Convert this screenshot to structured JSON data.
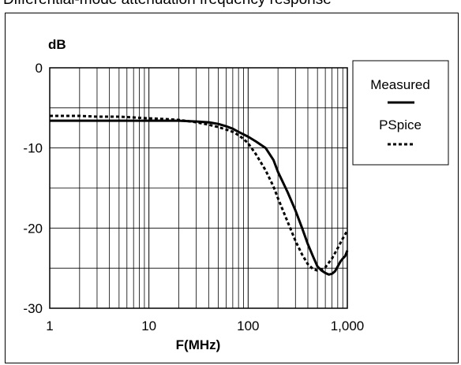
{
  "caption": "Differential-mode attenuation frequency response",
  "chart_data": {
    "type": "line",
    "xlabel": "F(MHz)",
    "ylabel": "dB",
    "x_scale": "log",
    "xlim": [
      1,
      1000
    ],
    "ylim": [
      -30,
      0
    ],
    "grid": true,
    "legend_placement": "right",
    "x_ticks": [
      {
        "value": 1,
        "label": "1"
      },
      {
        "value": 10,
        "label": "10"
      },
      {
        "value": 100,
        "label": "100"
      },
      {
        "value": 1000,
        "label": "1,000"
      }
    ],
    "y_ticks": [
      {
        "value": 0,
        "label": "0"
      },
      {
        "value": -10,
        "label": "-10"
      },
      {
        "value": -20,
        "label": "-20"
      },
      {
        "value": -30,
        "label": "-30"
      }
    ],
    "series": [
      {
        "name": "Measured",
        "color": "#000000",
        "style": "solid",
        "x": [
          1,
          2,
          3,
          5,
          7,
          10,
          15,
          20,
          30,
          40,
          50,
          60,
          70,
          80,
          100,
          120,
          150,
          180,
          200,
          250,
          300,
          350,
          400,
          450,
          500,
          550,
          600,
          650,
          700,
          750,
          800,
          850,
          900,
          950,
          1000
        ],
        "y": [
          -6.6,
          -6.6,
          -6.6,
          -6.6,
          -6.6,
          -6.6,
          -6.6,
          -6.6,
          -6.7,
          -6.8,
          -7.0,
          -7.3,
          -7.6,
          -8.0,
          -8.6,
          -9.2,
          -10.0,
          -11.5,
          -13.0,
          -15.5,
          -17.8,
          -20.0,
          -22.0,
          -23.5,
          -24.8,
          -25.3,
          -25.6,
          -25.8,
          -25.7,
          -25.4,
          -24.8,
          -24.2,
          -23.8,
          -23.5,
          -22.8
        ]
      },
      {
        "name": "PSpice",
        "color": "#000000",
        "style": "dotted",
        "x": [
          1,
          2,
          3,
          5,
          7,
          10,
          15,
          20,
          30,
          40,
          50,
          60,
          70,
          80,
          90,
          100,
          120,
          150,
          180,
          200,
          250,
          300,
          350,
          400,
          450,
          500,
          550,
          600,
          700,
          800,
          900,
          1000
        ],
        "y": [
          -6.0,
          -6.0,
          -6.1,
          -6.1,
          -6.2,
          -6.3,
          -6.4,
          -6.5,
          -6.8,
          -7.1,
          -7.4,
          -7.7,
          -8.0,
          -8.4,
          -8.9,
          -9.4,
          -10.8,
          -12.8,
          -14.8,
          -16.3,
          -19.2,
          -21.6,
          -23.3,
          -24.5,
          -25.1,
          -25.3,
          -25.2,
          -24.9,
          -23.8,
          -22.5,
          -21.3,
          -20.3
        ]
      }
    ]
  }
}
